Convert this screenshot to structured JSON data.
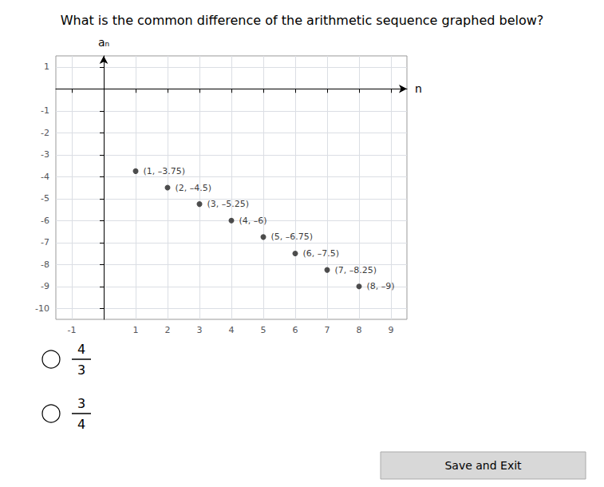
{
  "chart_data": {
    "type": "scatter",
    "title": "What is the common difference of the arithmetic sequence graphed below?",
    "xlabel": "n",
    "ylabel": "aₙ",
    "x": [
      1,
      2,
      3,
      4,
      5,
      6,
      7,
      8
    ],
    "values": [
      -3.75,
      -4.5,
      -5.25,
      -6,
      -6.75,
      -7.5,
      -8.25,
      -9
    ],
    "value_labels": [
      "(1, –3.75)",
      "(2, –4.5)",
      "(3, –5.25)",
      "(4, –6)",
      "(5, –6.75)",
      "(6, –7.5)",
      "(7, –8.25)",
      "(8, –9)"
    ],
    "data_labels": true,
    "color": "#222222",
    "xlim": [
      -1.5,
      9.5
    ],
    "ylim": [
      -10.5,
      1.5
    ],
    "xticks": [
      -1,
      1,
      2,
      3,
      4,
      5,
      6,
      7,
      8,
      9
    ],
    "yticks": [
      -10,
      -9,
      -8,
      -7,
      -6,
      -5,
      -4,
      -3,
      -2,
      -1,
      1
    ],
    "grid": true,
    "annotations": [
      "4",
      "3",
      "3",
      "4",
      "Save and Exit"
    ]
  }
}
